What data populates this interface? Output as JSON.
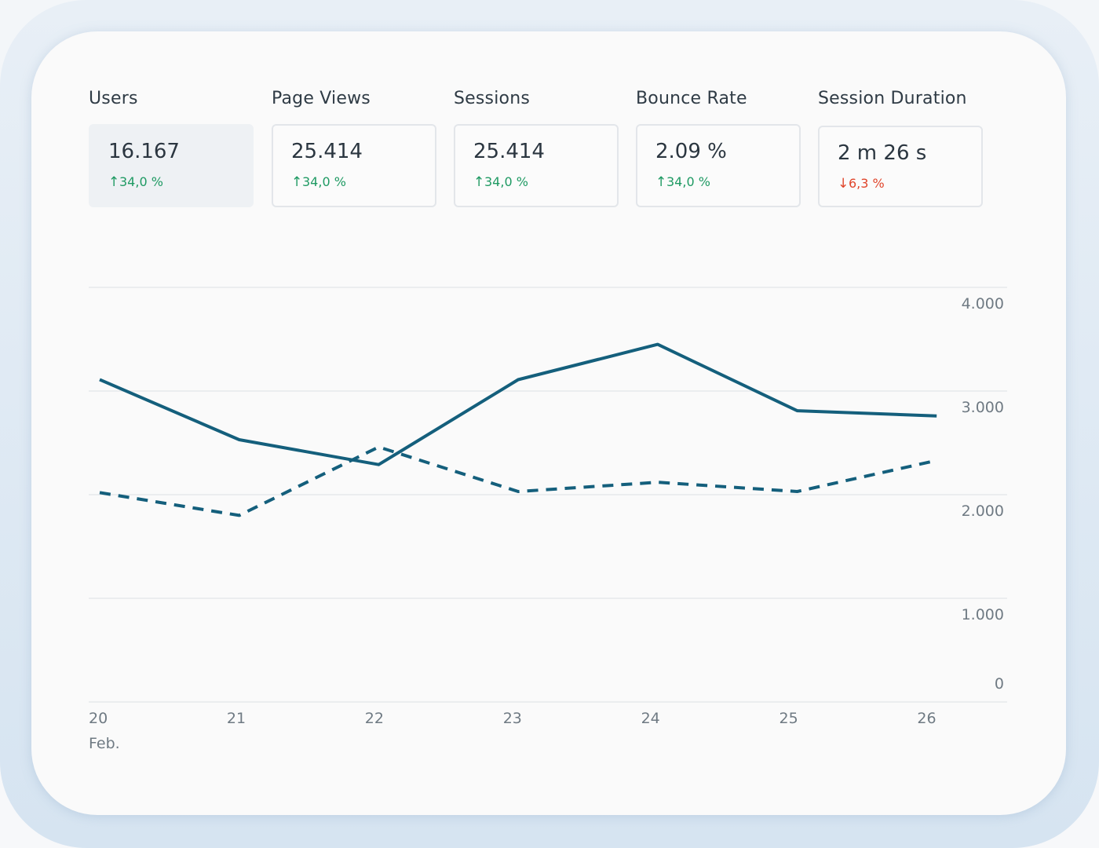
{
  "metrics": [
    {
      "label": "Users",
      "value": "16.167",
      "delta": "34,0 %",
      "direction": "up",
      "active": true
    },
    {
      "label": "Page Views",
      "value": "25.414",
      "delta": "34,0 %",
      "direction": "up",
      "active": false
    },
    {
      "label": "Sessions",
      "value": "25.414",
      "delta": "34,0 %",
      "direction": "up",
      "active": false
    },
    {
      "label": "Bounce Rate",
      "value": "2.09 %",
      "delta": "34,0 %",
      "direction": "up",
      "active": false
    },
    {
      "label": "Session Duration",
      "value": "2 m 26 s",
      "delta": "6,3 %",
      "direction": "down",
      "active": false
    }
  ],
  "colors": {
    "up": "#1f9a63",
    "down": "#e0452b",
    "line": "#145f7c",
    "grid": "#ebedef"
  },
  "chart_data": {
    "type": "line",
    "categories": [
      "20",
      "21",
      "22",
      "23",
      "24",
      "25",
      "26"
    ],
    "x_sublabel": "Feb.",
    "y_ticks": [
      "0",
      "1.000",
      "2.000",
      "3.000",
      "4.000"
    ],
    "y_tick_values": [
      0,
      1000,
      2000,
      3000,
      4000
    ],
    "ylim": [
      0,
      4000
    ],
    "y_axis_side": "right",
    "grid": true,
    "legend": "none",
    "series": [
      {
        "style": "solid",
        "values": [
          3110,
          2530,
          2290,
          3110,
          3450,
          2810,
          2760
        ]
      },
      {
        "style": "dashed",
        "values": [
          2020,
          1800,
          2460,
          2030,
          2120,
          2030,
          2330
        ]
      }
    ]
  }
}
